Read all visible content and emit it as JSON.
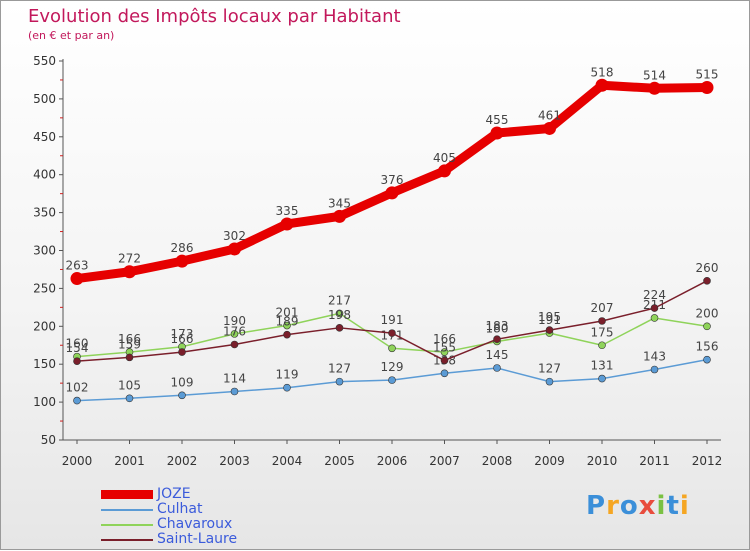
{
  "chart_data": {
    "type": "line",
    "title": "Evolution des Impôts locaux par Habitant",
    "subtitle": "(en € et par an)",
    "xlabel": "",
    "ylabel": "",
    "x": [
      "2000",
      "2001",
      "2002",
      "2003",
      "2004",
      "2005",
      "2006",
      "2007",
      "2008",
      "2009",
      "2010",
      "2011",
      "2012"
    ],
    "ylim": [
      50,
      550
    ],
    "yticks": [
      50,
      100,
      150,
      200,
      250,
      300,
      350,
      400,
      450,
      500,
      550
    ],
    "grid": false,
    "legend_position": "bottom-left",
    "series": [
      {
        "name": "JOZE",
        "color": "#e60000",
        "values": [
          263,
          272,
          286,
          302,
          335,
          345,
          376,
          405,
          455,
          461,
          518,
          514,
          515
        ]
      },
      {
        "name": "Culhat",
        "color": "#5b9bd5",
        "values": [
          102,
          105,
          109,
          114,
          119,
          127,
          129,
          138,
          145,
          127,
          131,
          143,
          156
        ]
      },
      {
        "name": "Chavaroux",
        "color": "#8fd35a",
        "values": [
          160,
          166,
          173,
          190,
          201,
          217,
          171,
          166,
          180,
          191,
          175,
          211,
          200
        ]
      },
      {
        "name": "Saint-Laure",
        "color": "#7a1f2b",
        "values": [
          154,
          159,
          166,
          176,
          189,
          198,
          191,
          155,
          183,
          195,
          207,
          224,
          260
        ]
      }
    ]
  },
  "logo": {
    "text": "Proxiti",
    "colors": [
      "#3b8fd9",
      "#f5a623",
      "#3b8fd9",
      "#e84c3d",
      "#7ac143",
      "#3b8fd9",
      "#f5a623"
    ]
  }
}
